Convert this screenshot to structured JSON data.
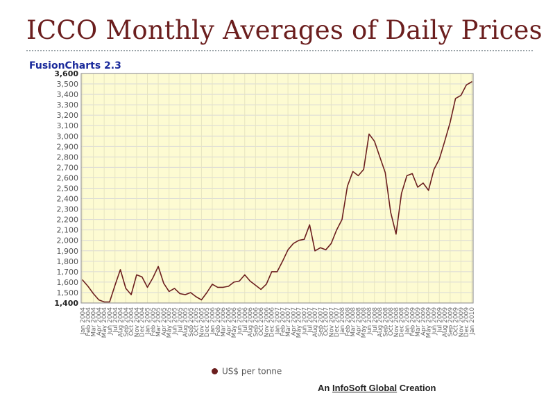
{
  "page": {
    "title": "ICCO Monthly Averages of Daily Prices",
    "brand": "FusionCharts 2.3",
    "legend_label": "US$ per tonne",
    "credit_prefix": "An",
    "credit_link": "InfoSoft Global",
    "credit_suffix": "Creation"
  },
  "colors": {
    "title": "#6b1e1e",
    "brand": "#1a2a9b",
    "line": "#6b1e1e",
    "plot_bg": "#fdfbd2",
    "grid": "#d8d8d8",
    "axis": "#9a9a9a"
  },
  "chart_data": {
    "type": "line",
    "title": "ICCO Monthly Averages of Daily Prices",
    "xlabel": "",
    "ylabel": "",
    "ylim": [
      1400,
      3600
    ],
    "y_ticks": [
      "1,400",
      "1,500",
      "1,600",
      "1,700",
      "1,800",
      "1,900",
      "2,000",
      "2,100",
      "2,200",
      "2,300",
      "2,400",
      "2,500",
      "2,600",
      "2,700",
      "2,800",
      "2,900",
      "3,000",
      "3,100",
      "3,200",
      "3,300",
      "3,400",
      "3,500",
      "3,600"
    ],
    "categories": [
      "Jan 2004",
      "Feb 2004",
      "Mar 2004",
      "Apr 2004",
      "May 2004",
      "Jun 2004",
      "Jul 2004",
      "Aug 2004",
      "Sep 2004",
      "Oct 2004",
      "Nov 2004",
      "Dec 2004",
      "Jan 2005",
      "Feb 2005",
      "Mar 2005",
      "Apr 2005",
      "May 2005",
      "Jun 2005",
      "Jul 2005",
      "Aug 2005",
      "Sep 2005",
      "Oct 2005",
      "Nov 2005",
      "Dec 2005",
      "Jan 2006",
      "Feb 2006",
      "Mar 2006",
      "Apr 2006",
      "May 2006",
      "Jun 2006",
      "Jul 2006",
      "Aug 2006",
      "Sep 2006",
      "Oct 2006",
      "Nov 2006",
      "Dec 2006",
      "Jan 2007",
      "Feb 2007",
      "Mar 2007",
      "Apr 2007",
      "May 2007",
      "Jun 2007",
      "Jul 2007",
      "Aug 2007",
      "Sep 2007",
      "Oct 2007",
      "Nov 2007",
      "Dec 2007",
      "Jan 2008",
      "Feb 2008",
      "Mar 2008",
      "Apr 2008",
      "May 2008",
      "Jun 2008",
      "Jul 2008",
      "Aug 2008",
      "Sep 2008",
      "Oct 2008",
      "Nov 2008",
      "Dec 2008",
      "Jan 2009",
      "Feb 2009",
      "Mar 2009",
      "Apr 2009",
      "May 2009",
      "Jun 2009",
      "Jul 2009",
      "Aug 2009",
      "Sep 2009",
      "Oct 2009",
      "Nov 2009",
      "Dec 2009",
      "Jan 2010"
    ],
    "series": [
      {
        "name": "US$ per tonne",
        "values": [
          1620,
          1560,
          1490,
          1430,
          1410,
          1410,
          1570,
          1720,
          1540,
          1480,
          1670,
          1650,
          1550,
          1640,
          1750,
          1590,
          1510,
          1540,
          1490,
          1480,
          1500,
          1460,
          1430,
          1500,
          1580,
          1550,
          1550,
          1560,
          1600,
          1610,
          1670,
          1610,
          1570,
          1530,
          1580,
          1700,
          1700,
          1800,
          1910,
          1970,
          2000,
          2010,
          2150,
          1900,
          1930,
          1910,
          1970,
          2100,
          2200,
          2520,
          2660,
          2620,
          2680,
          3020,
          2950,
          2800,
          2650,
          2270,
          2060,
          2450,
          2620,
          2640,
          2510,
          2550,
          2480,
          2680,
          2780,
          2950,
          3130,
          3360,
          3390,
          3490,
          3520
        ]
      }
    ]
  }
}
